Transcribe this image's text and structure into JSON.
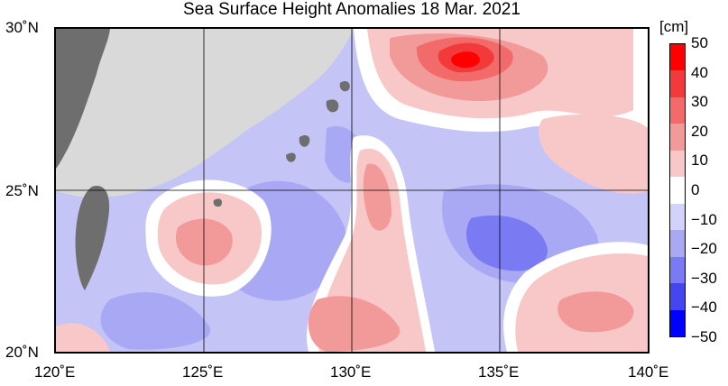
{
  "title": "Sea Surface Height Anomalies  18 Mar. 2021",
  "map": {
    "lat_labels": [
      {
        "text": "30˚N",
        "lat": 30
      },
      {
        "text": "25˚N",
        "lat": 25
      },
      {
        "text": "20˚N",
        "lat": 20
      }
    ],
    "lon_labels": [
      {
        "text": "120˚E",
        "lon": 120
      },
      {
        "text": "125˚E",
        "lon": 125
      },
      {
        "text": "130˚E",
        "lon": 130
      },
      {
        "text": "135˚E",
        "lon": 135
      },
      {
        "text": "140˚E",
        "lon": 140
      }
    ],
    "lon_range": [
      120,
      140
    ],
    "lat_range": [
      20,
      30
    ],
    "land_color": "#d9d9d9",
    "coast_color": "#6e6e6e"
  },
  "colorbar": {
    "unit": "[cm]",
    "ticks": [
      "50",
      "40",
      "30",
      "20",
      "10",
      "0",
      "−10",
      "−20",
      "−30",
      "−40",
      "−50"
    ],
    "levels": [
      {
        "range": "40 to 50",
        "color": "#ff0000"
      },
      {
        "range": "30 to 40",
        "color": "#f23a3a"
      },
      {
        "range": "20 to 30",
        "color": "#f26a6a"
      },
      {
        "range": "10 to 20",
        "color": "#f29a9a"
      },
      {
        "range": "3 to 10",
        "color": "#f8c8c8"
      },
      {
        "range": "-3 to 3",
        "color": "#ffffff"
      },
      {
        "range": "-10 to -3",
        "color": "#d2d2fa"
      },
      {
        "range": "-20 to -10",
        "color": "#a8a8f5"
      },
      {
        "range": "-30 to -20",
        "color": "#7a7af2"
      },
      {
        "range": "-40 to -30",
        "color": "#4646f0"
      },
      {
        "range": "-50 to -40",
        "color": "#0000ff"
      }
    ]
  }
}
